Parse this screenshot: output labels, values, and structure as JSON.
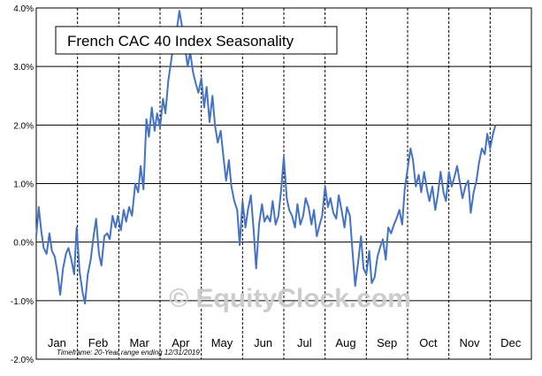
{
  "chart_data": {
    "type": "line",
    "title": "French CAC 40 Index Seasonality",
    "watermark": "© EquityClock.com",
    "footnote": "Timeframe: 20-Year range ending 12/31/2019",
    "xlabel": "",
    "ylabel": "",
    "months": [
      "Jan",
      "Feb",
      "Mar",
      "Apr",
      "May",
      "Jun",
      "Jul",
      "Aug",
      "Sep",
      "Oct",
      "Nov",
      "Dec"
    ],
    "y_ticks": [
      "-2.0%",
      "-1.0%",
      "0.0%",
      "1.0%",
      "2.0%",
      "3.0%",
      "4.0%"
    ],
    "y_tick_values": [
      -2,
      -1,
      0,
      1,
      2,
      3,
      4
    ],
    "ylim": [
      -2,
      4
    ],
    "xlim": [
      0,
      12
    ],
    "x_unit": "months elapsed in year",
    "y_unit": "percent",
    "grid": {
      "horizontal": true,
      "vertical_dashed_month_boundaries": true
    },
    "colors": {
      "line": "#4472c4",
      "grid": "#000000",
      "watermark": "#c8c8c8"
    },
    "series": [
      {
        "points": [
          [
            0.0,
            0.1
          ],
          [
            0.06,
            0.6
          ],
          [
            0.12,
            0.2
          ],
          [
            0.18,
            -0.1
          ],
          [
            0.25,
            -0.2
          ],
          [
            0.32,
            0.15
          ],
          [
            0.38,
            -0.15
          ],
          [
            0.45,
            -0.25
          ],
          [
            0.52,
            -0.55
          ],
          [
            0.58,
            -0.9
          ],
          [
            0.65,
            -0.45
          ],
          [
            0.72,
            -0.2
          ],
          [
            0.78,
            -0.1
          ],
          [
            0.85,
            -0.3
          ],
          [
            0.92,
            -0.55
          ],
          [
            0.98,
            0.25
          ],
          [
            1.05,
            -0.5
          ],
          [
            1.12,
            -0.85
          ],
          [
            1.18,
            -1.05
          ],
          [
            1.25,
            -0.55
          ],
          [
            1.32,
            -0.3
          ],
          [
            1.38,
            0.05
          ],
          [
            1.45,
            0.4
          ],
          [
            1.52,
            -0.2
          ],
          [
            1.58,
            -0.4
          ],
          [
            1.65,
            0.1
          ],
          [
            1.72,
            0.15
          ],
          [
            1.78,
            0.05
          ],
          [
            1.85,
            0.45
          ],
          [
            1.92,
            0.25
          ],
          [
            1.98,
            0.45
          ],
          [
            2.05,
            0.2
          ],
          [
            2.12,
            0.55
          ],
          [
            2.18,
            0.35
          ],
          [
            2.25,
            0.6
          ],
          [
            2.32,
            0.45
          ],
          [
            2.4,
            1.0
          ],
          [
            2.47,
            0.85
          ],
          [
            2.53,
            1.3
          ],
          [
            2.6,
            0.9
          ],
          [
            2.67,
            2.1
          ],
          [
            2.73,
            1.8
          ],
          [
            2.8,
            2.3
          ],
          [
            2.87,
            1.9
          ],
          [
            2.93,
            2.2
          ],
          [
            3.0,
            1.95
          ],
          [
            3.07,
            2.45
          ],
          [
            3.13,
            2.2
          ],
          [
            3.2,
            2.75
          ],
          [
            3.27,
            3.1
          ],
          [
            3.33,
            3.4
          ],
          [
            3.4,
            3.6
          ],
          [
            3.47,
            3.95
          ],
          [
            3.53,
            3.7
          ],
          [
            3.6,
            3.35
          ],
          [
            3.67,
            3.0
          ],
          [
            3.73,
            3.25
          ],
          [
            3.8,
            2.9
          ],
          [
            3.87,
            2.7
          ],
          [
            3.93,
            2.55
          ],
          [
            4.0,
            2.8
          ],
          [
            4.07,
            2.3
          ],
          [
            4.13,
            2.65
          ],
          [
            4.2,
            2.05
          ],
          [
            4.27,
            2.5
          ],
          [
            4.33,
            2.0
          ],
          [
            4.4,
            1.7
          ],
          [
            4.47,
            1.9
          ],
          [
            4.53,
            1.5
          ],
          [
            4.6,
            1.05
          ],
          [
            4.67,
            1.4
          ],
          [
            4.73,
            0.95
          ],
          [
            4.8,
            0.7
          ],
          [
            4.87,
            0.55
          ],
          [
            4.93,
            -0.05
          ],
          [
            5.0,
            0.7
          ],
          [
            5.07,
            0.25
          ],
          [
            5.13,
            0.55
          ],
          [
            5.2,
            0.8
          ],
          [
            5.27,
            0.2
          ],
          [
            5.33,
            -0.45
          ],
          [
            5.4,
            0.3
          ],
          [
            5.47,
            0.65
          ],
          [
            5.53,
            0.35
          ],
          [
            5.6,
            0.45
          ],
          [
            5.67,
            0.35
          ],
          [
            5.73,
            0.7
          ],
          [
            5.8,
            0.3
          ],
          [
            5.87,
            0.45
          ],
          [
            5.93,
            0.85
          ],
          [
            6.0,
            1.45
          ],
          [
            6.07,
            0.75
          ],
          [
            6.13,
            0.55
          ],
          [
            6.2,
            0.45
          ],
          [
            6.27,
            0.25
          ],
          [
            6.33,
            0.65
          ],
          [
            6.4,
            0.3
          ],
          [
            6.47,
            0.45
          ],
          [
            6.53,
            0.75
          ],
          [
            6.6,
            0.6
          ],
          [
            6.67,
            0.3
          ],
          [
            6.73,
            0.55
          ],
          [
            6.8,
            0.1
          ],
          [
            6.87,
            0.3
          ],
          [
            6.93,
            0.45
          ],
          [
            7.0,
            0.95
          ],
          [
            7.07,
            0.6
          ],
          [
            7.13,
            0.75
          ],
          [
            7.2,
            0.5
          ],
          [
            7.27,
            0.4
          ],
          [
            7.33,
            0.8
          ],
          [
            7.4,
            0.55
          ],
          [
            7.47,
            0.25
          ],
          [
            7.53,
            0.6
          ],
          [
            7.6,
            0.45
          ],
          [
            7.67,
            -0.2
          ],
          [
            7.73,
            -0.75
          ],
          [
            7.8,
            -0.35
          ],
          [
            7.87,
            0.1
          ],
          [
            7.93,
            -0.45
          ],
          [
            8.0,
            -0.55
          ],
          [
            8.07,
            -0.15
          ],
          [
            8.13,
            -0.7
          ],
          [
            8.2,
            -0.6
          ],
          [
            8.27,
            -0.25
          ],
          [
            8.33,
            -0.1
          ],
          [
            8.4,
            0.05
          ],
          [
            8.47,
            -0.3
          ],
          [
            8.53,
            0.25
          ],
          [
            8.6,
            0.15
          ],
          [
            8.67,
            0.3
          ],
          [
            8.73,
            0.4
          ],
          [
            8.8,
            0.55
          ],
          [
            8.87,
            0.3
          ],
          [
            8.93,
            0.9
          ],
          [
            9.0,
            1.25
          ],
          [
            9.07,
            1.6
          ],
          [
            9.13,
            1.4
          ],
          [
            9.2,
            0.95
          ],
          [
            9.27,
            1.15
          ],
          [
            9.33,
            0.85
          ],
          [
            9.4,
            1.2
          ],
          [
            9.47,
            0.9
          ],
          [
            9.53,
            0.7
          ],
          [
            9.6,
            0.95
          ],
          [
            9.67,
            0.55
          ],
          [
            9.73,
            0.8
          ],
          [
            9.8,
            1.2
          ],
          [
            9.87,
            0.85
          ],
          [
            9.93,
            0.7
          ],
          [
            10.0,
            1.2
          ],
          [
            10.07,
            0.95
          ],
          [
            10.13,
            1.1
          ],
          [
            10.2,
            1.3
          ],
          [
            10.27,
            1.0
          ],
          [
            10.33,
            0.75
          ],
          [
            10.4,
            0.95
          ],
          [
            10.47,
            1.05
          ],
          [
            10.53,
            0.5
          ],
          [
            10.6,
            0.85
          ],
          [
            10.67,
            1.05
          ],
          [
            10.73,
            1.35
          ],
          [
            10.8,
            1.6
          ],
          [
            10.87,
            1.5
          ],
          [
            10.93,
            1.85
          ],
          [
            11.0,
            1.6
          ],
          [
            11.07,
            1.85
          ],
          [
            11.13,
            2.0
          ]
        ]
      }
    ]
  }
}
